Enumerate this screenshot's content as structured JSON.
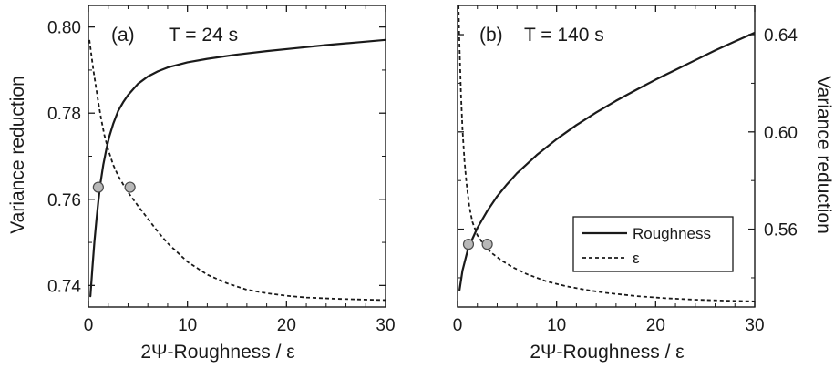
{
  "chart_data": [
    {
      "type": "line",
      "panel_label": "(a)",
      "title": "T = 24 s",
      "xlabel": "2Ψ-Roughness / ε",
      "ylabel": "Variance reduction",
      "xlim": [
        0,
        30
      ],
      "ylim": [
        0.735,
        0.805
      ],
      "x_ticks": [
        "0",
        "10",
        "20",
        "30"
      ],
      "y_ticks": [
        "0.74",
        "0.76",
        "0.78",
        "0.80"
      ],
      "y_axis_side": "left",
      "series": [
        {
          "name": "Roughness",
          "style": "solid",
          "x": [
            0.2,
            0.4,
            0.6,
            0.8,
            1.0,
            1.2,
            1.5,
            1.8,
            2.1,
            2.5,
            3.0,
            3.5,
            4.0,
            5.0,
            6.0,
            7.0,
            8.0,
            10.0,
            12.0,
            15.0,
            18.0,
            21.0,
            24.0,
            27.0,
            30.0
          ],
          "y": [
            0.7375,
            0.744,
            0.75,
            0.755,
            0.7595,
            0.7635,
            0.768,
            0.7715,
            0.7745,
            0.7775,
            0.7805,
            0.7825,
            0.7842,
            0.7868,
            0.7885,
            0.7897,
            0.7906,
            0.7918,
            0.7926,
            0.7936,
            0.7944,
            0.7951,
            0.7958,
            0.7964,
            0.797
          ]
        },
        {
          "name": "ε",
          "style": "dashed",
          "x": [
            0.1,
            0.3,
            0.5,
            0.7,
            1.0,
            1.3,
            1.6,
            2.0,
            2.5,
            3.0,
            3.5,
            4.2,
            5.0,
            6.0,
            7.0,
            8.0,
            10.0,
            12.0,
            14.0,
            16.0,
            18.0,
            20.0,
            22.0,
            25.0,
            28.0,
            30.0
          ],
          "y": [
            0.797,
            0.7935,
            0.79,
            0.787,
            0.7825,
            0.7785,
            0.775,
            0.7715,
            0.768,
            0.7655,
            0.7635,
            0.761,
            0.7585,
            0.7555,
            0.7525,
            0.7498,
            0.7455,
            0.7425,
            0.7405,
            0.739,
            0.7382,
            0.7376,
            0.7372,
            0.7369,
            0.7367,
            0.7366
          ]
        }
      ],
      "markers": [
        {
          "x": 1.0,
          "y": 0.7628
        },
        {
          "x": 4.2,
          "y": 0.7628
        }
      ],
      "grid": false
    },
    {
      "type": "line",
      "panel_label": "(b)",
      "title": "T = 140 s",
      "xlabel": "2Ψ-Roughness / ε",
      "ylabel": "Variance reduction",
      "xlim": [
        0,
        30
      ],
      "ylim": [
        0.528,
        0.652
      ],
      "x_ticks": [
        "0",
        "10",
        "20",
        "30"
      ],
      "y_ticks": [
        "0.56",
        "0.60",
        "0.64"
      ],
      "y_axis_side": "right",
      "legend_position": "bottom-right",
      "series": [
        {
          "name": "Roughness",
          "style": "solid",
          "x": [
            0.2,
            0.5,
            1.0,
            1.5,
            2.0,
            3.0,
            4.0,
            5.0,
            6.0,
            8.0,
            10.0,
            12.0,
            14.0,
            16.0,
            18.0,
            20.0,
            22.0,
            24.0,
            26.0,
            28.0,
            30.0
          ],
          "y": [
            0.535,
            0.543,
            0.551,
            0.556,
            0.5605,
            0.5675,
            0.5735,
            0.5785,
            0.583,
            0.5905,
            0.597,
            0.6028,
            0.608,
            0.6128,
            0.6172,
            0.6215,
            0.6255,
            0.6295,
            0.6335,
            0.6372,
            0.6408
          ]
        },
        {
          "name": "ε",
          "style": "dashed",
          "x": [
            0.1,
            0.2,
            0.35,
            0.5,
            0.7,
            0.9,
            1.2,
            1.5,
            2.0,
            2.5,
            3.0,
            3.5,
            4.5,
            5.5,
            7.0,
            9.0,
            11.0,
            13.0,
            15.0,
            18.0,
            21.0,
            24.0,
            27.0,
            30.0
          ],
          "y": [
            0.652,
            0.635,
            0.615,
            0.601,
            0.588,
            0.579,
            0.569,
            0.563,
            0.5575,
            0.5545,
            0.552,
            0.55,
            0.547,
            0.5445,
            0.5415,
            0.5385,
            0.5365,
            0.535,
            0.5338,
            0.5325,
            0.5316,
            0.531,
            0.5306,
            0.5303
          ]
        }
      ],
      "markers": [
        {
          "x": 1.1,
          "y": 0.5538
        },
        {
          "x": 3.0,
          "y": 0.5538
        }
      ],
      "grid": false
    }
  ]
}
